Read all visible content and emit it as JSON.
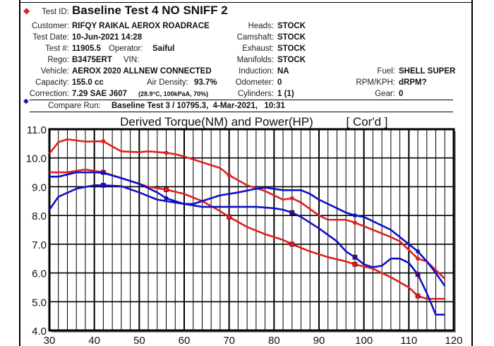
{
  "header": {
    "test_id_label": "Test ID:",
    "test_id": "Baseline Test 4 NO SNIFF 2",
    "left": [
      {
        "label": "Customer:",
        "value": "RIFQY RAIKAL AEROX ROADRACE"
      },
      {
        "label": "Test Date:",
        "value": "10-Jun-2021 14:28"
      },
      {
        "label": "Test #:",
        "value": "11905.5"
      },
      {
        "label": "Rego:",
        "value": "B3475ERT"
      },
      {
        "label": "Vehicle:",
        "value": "AEROX 2020 ALLNEW CONNECTED"
      },
      {
        "label": "Capacity:",
        "value": "155.0 cc"
      },
      {
        "label": "Correction:",
        "value": "7.29 SAE J607"
      }
    ],
    "operator_label": "Operator:",
    "operator": "Saiful",
    "vin_label": "VIN:",
    "air_density_label": "Air Density:",
    "air_density": "93.7%",
    "conditions": "(28.9°C, 100kPaA, 70%)",
    "middle": [
      {
        "label": "Heads:",
        "value": "STOCK"
      },
      {
        "label": "Camshaft:",
        "value": "STOCK"
      },
      {
        "label": "Exhaust:",
        "value": "STOCK"
      },
      {
        "label": "Manifolds:",
        "value": "STOCK"
      },
      {
        "label": "Induction:",
        "value": "NA"
      },
      {
        "label": "Odometer:",
        "value": "0"
      },
      {
        "label": "Cylinders:",
        "value": "1 (1)"
      }
    ],
    "right": [
      {
        "label": "Fuel:",
        "value": "SHELL SUPER"
      },
      {
        "label": "RPM/KPH:",
        "value": "dRPM?"
      },
      {
        "label": "Gear:",
        "value": "0"
      }
    ],
    "compare_label": "Compare Run:",
    "compare_value": "Baseline Test 3 / 10795.3,  4-Mar-2021,   10:31",
    "colors": {
      "test": "#e02020",
      "compare": "#1010c8"
    }
  },
  "chart_data": {
    "type": "line",
    "title": "Derived Torque(NM) and Power(HP)",
    "title_note": "[ Cor'd ]",
    "xlim": [
      30,
      120
    ],
    "ylim": [
      4,
      11
    ],
    "x_ticks": [
      "30",
      "40",
      "50",
      "60",
      "70",
      "80",
      "90",
      "100",
      "110",
      "120"
    ],
    "y_ticks": [
      "4.0",
      "5.0",
      "6.0",
      "7.0",
      "8.0",
      "9.0",
      "10.0",
      "11.0"
    ],
    "grid": true,
    "series": [
      {
        "color": "#e02020",
        "marker": "dot",
        "points": [
          [
            30,
            10.15
          ],
          [
            32,
            10.55
          ],
          [
            34,
            10.65
          ],
          [
            38,
            10.57
          ],
          [
            42,
            10.58
          ],
          [
            44,
            10.4
          ],
          [
            46,
            10.23
          ],
          [
            50,
            10.2
          ],
          [
            52,
            10.23
          ],
          [
            56,
            10.18
          ],
          [
            58,
            10.13
          ],
          [
            60,
            10.05
          ],
          [
            64,
            9.85
          ],
          [
            68,
            9.65
          ],
          [
            70,
            9.4
          ],
          [
            74,
            9.05
          ],
          [
            78,
            8.85
          ],
          [
            80,
            8.7
          ],
          [
            82,
            8.55
          ],
          [
            84,
            8.6
          ],
          [
            86,
            8.45
          ],
          [
            90,
            8.0
          ],
          [
            92,
            7.85
          ],
          [
            96,
            7.85
          ],
          [
            98,
            7.75
          ],
          [
            102,
            7.5
          ],
          [
            106,
            7.25
          ],
          [
            108,
            7.1
          ],
          [
            110,
            6.8
          ],
          [
            112,
            6.5
          ],
          [
            114,
            6.4
          ],
          [
            116,
            6.1
          ],
          [
            118,
            5.8
          ]
        ]
      },
      {
        "color": "#e02020",
        "marker": "square",
        "points": [
          [
            30,
            9.5
          ],
          [
            34,
            9.5
          ],
          [
            38,
            9.6
          ],
          [
            40,
            9.55
          ],
          [
            42,
            9.5
          ],
          [
            46,
            9.3
          ],
          [
            50,
            9.1
          ],
          [
            52,
            9.0
          ],
          [
            56,
            8.9
          ],
          [
            60,
            8.75
          ],
          [
            64,
            8.5
          ],
          [
            68,
            8.15
          ],
          [
            70,
            7.95
          ],
          [
            74,
            7.6
          ],
          [
            78,
            7.35
          ],
          [
            82,
            7.15
          ],
          [
            84,
            7.0
          ],
          [
            88,
            6.75
          ],
          [
            92,
            6.55
          ],
          [
            96,
            6.4
          ],
          [
            98,
            6.3
          ],
          [
            102,
            6.15
          ],
          [
            106,
            5.85
          ],
          [
            110,
            5.5
          ],
          [
            112,
            5.2
          ],
          [
            114,
            5.1
          ],
          [
            118,
            5.1
          ]
        ]
      },
      {
        "color": "#1010c8",
        "marker": "dot",
        "points": [
          [
            30,
            9.35
          ],
          [
            32,
            9.35
          ],
          [
            36,
            9.5
          ],
          [
            40,
            9.5
          ],
          [
            42,
            9.48
          ],
          [
            46,
            9.3
          ],
          [
            50,
            9.1
          ],
          [
            54,
            8.8
          ],
          [
            56,
            8.6
          ],
          [
            60,
            8.4
          ],
          [
            62,
            8.4
          ],
          [
            64,
            8.5
          ],
          [
            68,
            8.7
          ],
          [
            72,
            8.8
          ],
          [
            76,
            8.93
          ],
          [
            78,
            8.97
          ],
          [
            82,
            8.88
          ],
          [
            86,
            8.88
          ],
          [
            88,
            8.75
          ],
          [
            90,
            8.55
          ],
          [
            94,
            8.25
          ],
          [
            96,
            8.1
          ],
          [
            98,
            8.0
          ],
          [
            100,
            7.95
          ],
          [
            102,
            7.8
          ],
          [
            106,
            7.5
          ],
          [
            110,
            7.0
          ],
          [
            112,
            6.75
          ],
          [
            114,
            6.4
          ],
          [
            116,
            6.0
          ],
          [
            118,
            5.55
          ]
        ]
      },
      {
        "color": "#1010c8",
        "marker": "square",
        "points": [
          [
            30,
            8.2
          ],
          [
            32,
            8.65
          ],
          [
            36,
            8.93
          ],
          [
            40,
            9.05
          ],
          [
            42,
            9.05
          ],
          [
            46,
            9.02
          ],
          [
            50,
            8.8
          ],
          [
            54,
            8.55
          ],
          [
            58,
            8.45
          ],
          [
            62,
            8.35
          ],
          [
            64,
            8.3
          ],
          [
            68,
            8.3
          ],
          [
            72,
            8.3
          ],
          [
            76,
            8.3
          ],
          [
            80,
            8.25
          ],
          [
            82,
            8.2
          ],
          [
            84,
            8.1
          ],
          [
            86,
            7.95
          ],
          [
            90,
            7.55
          ],
          [
            94,
            7.1
          ],
          [
            96,
            6.75
          ],
          [
            98,
            6.55
          ],
          [
            100,
            6.3
          ],
          [
            102,
            6.2
          ],
          [
            104,
            6.25
          ],
          [
            106,
            6.5
          ],
          [
            108,
            6.5
          ],
          [
            110,
            6.35
          ],
          [
            112,
            5.95
          ],
          [
            114,
            5.3
          ],
          [
            116,
            4.55
          ],
          [
            118,
            4.55
          ]
        ]
      }
    ]
  }
}
